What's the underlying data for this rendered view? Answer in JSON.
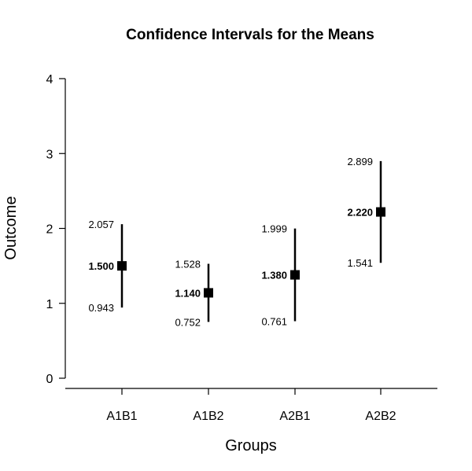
{
  "chart_data": {
    "type": "scatter",
    "title": "Confidence Intervals for the Means",
    "xlabel": "Groups",
    "ylabel": "Outcome",
    "ylim": [
      0,
      4
    ],
    "yticks": [
      "0",
      "1",
      "2",
      "3",
      "4"
    ],
    "categories": [
      "A1B1",
      "A1B2",
      "A2B1",
      "A2B2"
    ],
    "means": [
      1.5,
      1.14,
      1.38,
      2.22
    ],
    "lower": [
      0.943,
      0.752,
      0.761,
      1.541
    ],
    "upper": [
      2.057,
      1.528,
      1.999,
      2.899
    ],
    "mean_labels": [
      "1.500",
      "1.140",
      "1.380",
      "2.220"
    ],
    "lower_labels": [
      "0.943",
      "0.752",
      "0.761",
      "1.541"
    ],
    "upper_labels": [
      "2.057",
      "1.528",
      "1.999",
      "2.899"
    ]
  }
}
